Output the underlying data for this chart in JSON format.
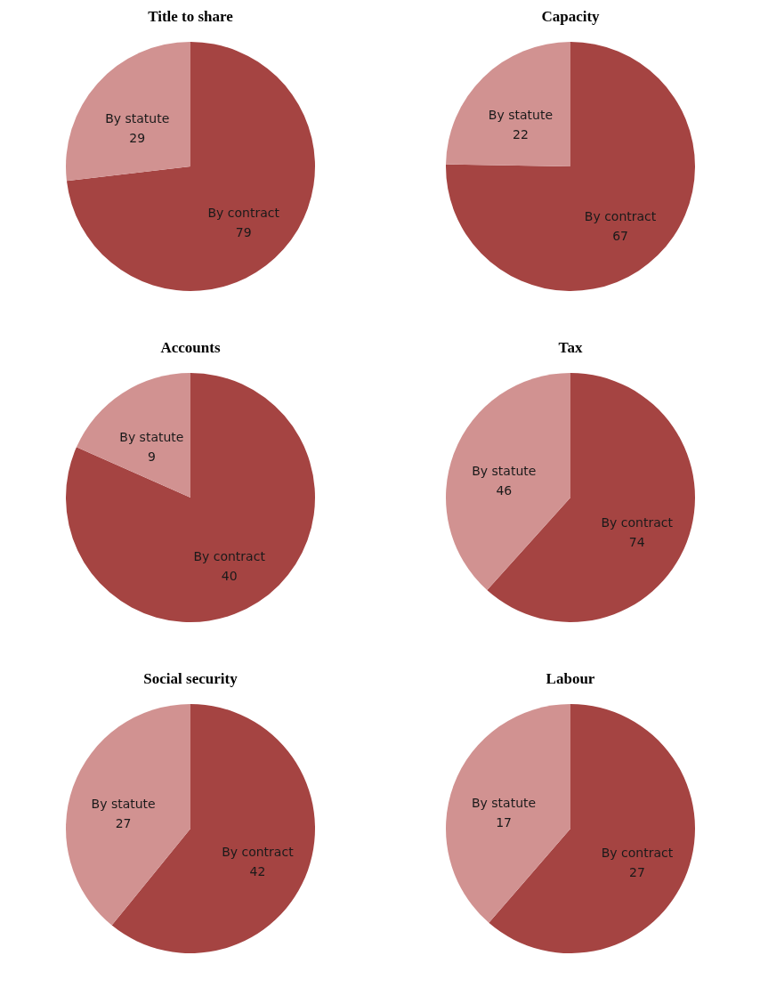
{
  "chart_data": [
    {
      "type": "pie",
      "title": "Title to share",
      "categories": [
        "By contract",
        "By statute"
      ],
      "values": [
        79,
        29
      ],
      "colors": [
        "#a54442",
        "#d19291"
      ],
      "data_labels": true
    },
    {
      "type": "pie",
      "title": "Capacity",
      "categories": [
        "By contract",
        "By statute"
      ],
      "values": [
        67,
        22
      ],
      "colors": [
        "#a54442",
        "#d19291"
      ],
      "data_labels": true
    },
    {
      "type": "pie",
      "title": "Accounts",
      "categories": [
        "By contract",
        "By statute"
      ],
      "values": [
        40,
        9
      ],
      "colors": [
        "#a54442",
        "#d19291"
      ],
      "data_labels": true
    },
    {
      "type": "pie",
      "title": "Tax",
      "categories": [
        "By contract",
        "By statute"
      ],
      "values": [
        74,
        46
      ],
      "colors": [
        "#a54442",
        "#d19291"
      ],
      "data_labels": true
    },
    {
      "type": "pie",
      "title": "Social security",
      "categories": [
        "By contract",
        "By statute"
      ],
      "values": [
        42,
        27
      ],
      "colors": [
        "#a54442",
        "#d19291"
      ],
      "data_labels": true
    },
    {
      "type": "pie",
      "title": "Labour",
      "categories": [
        "By contract",
        "By statute"
      ],
      "values": [
        27,
        17
      ],
      "colors": [
        "#a54442",
        "#d19291"
      ],
      "data_labels": true
    }
  ]
}
